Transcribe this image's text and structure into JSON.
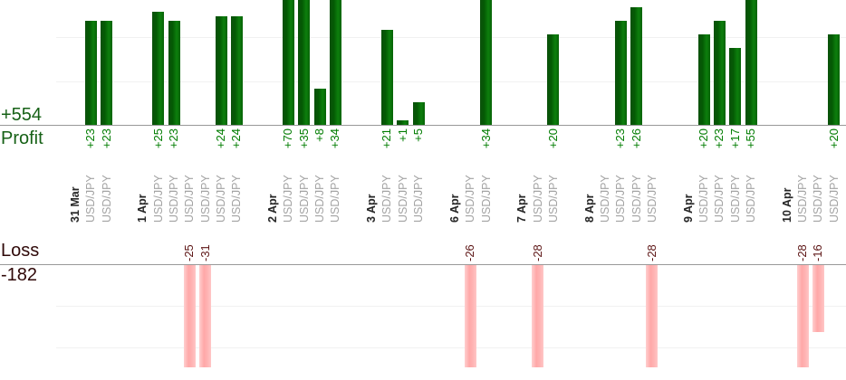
{
  "left_axis": {
    "profit_total": "+554",
    "profit_label": "Profit",
    "loss_label": "Loss",
    "loss_total": "-182"
  },
  "colors": {
    "profit_bar_dark": "#045a04",
    "profit_bar_light": "#0d7f0d",
    "loss_bar_mid": "#ffa8a8",
    "loss_bar_light": "#ffcfcf",
    "profit_value_text": "#007c00",
    "loss_value_text": "#5c1414",
    "profit_axis_text": "#166116",
    "loss_axis_text": "#2f0808",
    "date_text": "#262626",
    "symbol_text": "#a3a3a3",
    "baseline": "#999999",
    "gridline": "#f1f1f1"
  },
  "chart_data": {
    "type": "bar",
    "instrument": "USD/JPY",
    "positive_prefix": "+",
    "profit_total": 554,
    "loss_total": -182,
    "gridline_step": 10,
    "legend": "none",
    "grid": "on",
    "groups": [
      {
        "date": "31 Mar",
        "trades": [
          23,
          23
        ]
      },
      {
        "date": "1 Apr",
        "trades": [
          25,
          23,
          -25,
          -31,
          24,
          24
        ]
      },
      {
        "date": "2 Apr",
        "trades": [
          70,
          35,
          8,
          34
        ]
      },
      {
        "date": "3 Apr",
        "trades": [
          21,
          1,
          5
        ]
      },
      {
        "date": "6 Apr",
        "trades": [
          -26,
          34
        ]
      },
      {
        "date": "7 Apr",
        "trades": [
          -28,
          20
        ]
      },
      {
        "date": "8 Apr",
        "trades": [
          0,
          23,
          26,
          -28
        ]
      },
      {
        "date": "9 Apr",
        "trades": [
          20,
          23,
          17,
          55
        ]
      },
      {
        "date": "10 Apr",
        "trades": [
          -28,
          -16,
          20
        ]
      }
    ]
  }
}
